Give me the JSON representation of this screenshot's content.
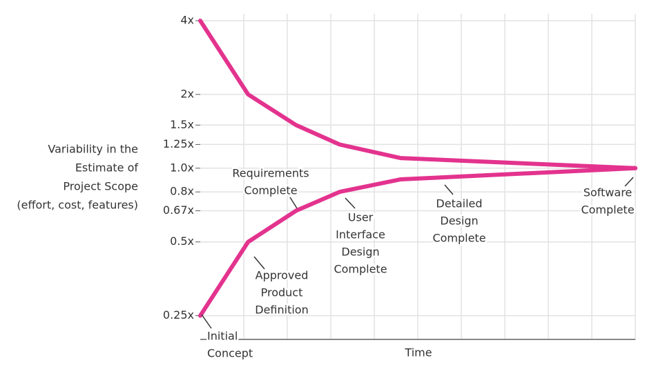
{
  "chart_data": {
    "type": "line",
    "y_label": [
      "Variability in the",
      "Estimate of",
      "Project Scope",
      "(effort, cost, features)"
    ],
    "x_label": "Time",
    "x": [
      0,
      1.1,
      2.2,
      3.2,
      4.6,
      10
    ],
    "xlim": [
      0,
      10
    ],
    "series": [
      {
        "color": "#e3338e",
        "values": [
          4,
          2,
          1.5,
          1.25,
          1.1,
          1.0
        ]
      },
      {
        "color": "#e3338e",
        "values": [
          0.25,
          0.5,
          0.67,
          0.8,
          0.9,
          1.0
        ]
      }
    ],
    "ylim": [
      0.2,
      4
    ],
    "log_scale": true,
    "yticks": [
      {
        "value": 0.25,
        "label": "0.25x"
      },
      {
        "value": 0.5,
        "label": "0.5x"
      },
      {
        "value": 0.67,
        "label": "0.67x"
      },
      {
        "value": 0.8,
        "label": "0.8x"
      },
      {
        "value": 1.0,
        "label": "1.0x"
      },
      {
        "value": 1.25,
        "label": "1.25x"
      },
      {
        "value": 1.5,
        "label": "1.5x"
      },
      {
        "value": 2,
        "label": "2x"
      },
      {
        "value": 4,
        "label": "4x"
      }
    ],
    "grid": true,
    "annotations": [
      {
        "lines": [
          "Initial",
          "Concept"
        ]
      },
      {
        "lines": [
          "Approved",
          "Product",
          "Definition"
        ]
      },
      {
        "lines": [
          "Requirements",
          "Complete"
        ]
      },
      {
        "lines": [
          "User",
          "Interface",
          "Design",
          "Complete"
        ]
      },
      {
        "lines": [
          "Detailed",
          "Design",
          "Complete"
        ]
      },
      {
        "lines": [
          "Software",
          "Complete"
        ]
      }
    ]
  }
}
